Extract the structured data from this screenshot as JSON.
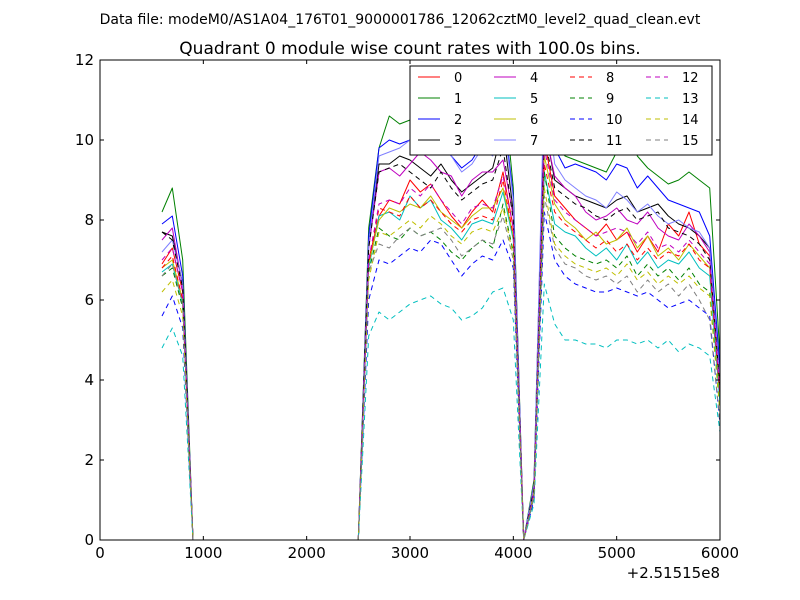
{
  "chart_data": {
    "type": "line",
    "suptitle": "Data file: modeM0/AS1A04_176T01_9000001786_12062cztM0_level2_quad_clean.evt",
    "title": "Quadrant 0 module wise count rates with 100.0s bins.",
    "xlabel": "",
    "ylabel": "",
    "offset_text": "+2.51515e8",
    "xlim": [
      0,
      6000
    ],
    "ylim": [
      0,
      12
    ],
    "xticks": [
      0,
      1000,
      2000,
      3000,
      4000,
      5000,
      6000
    ],
    "yticks": [
      0,
      2,
      4,
      6,
      8,
      10,
      12
    ],
    "xtick_labels": [
      "0",
      "1000",
      "2000",
      "3000",
      "4000",
      "5000",
      "6000"
    ],
    "ytick_labels": [
      "0",
      "2",
      "4",
      "6",
      "8",
      "10",
      "12"
    ],
    "grid": false,
    "legend_position": "top-right",
    "x": [
      600,
      700,
      800,
      900,
      1000,
      1100,
      1200,
      1300,
      1400,
      1500,
      1600,
      1700,
      1800,
      1900,
      2000,
      2100,
      2200,
      2300,
      2400,
      2500,
      2600,
      2700,
      2800,
      2900,
      3000,
      3100,
      3200,
      3300,
      3400,
      3500,
      3600,
      3700,
      3800,
      3900,
      4000,
      4100,
      4200,
      4300,
      4400,
      4500,
      4600,
      4700,
      4800,
      4900,
      5000,
      5100,
      5200,
      5300,
      5400,
      5500,
      5600,
      5700,
      5800,
      5900,
      6000
    ],
    "series": [
      {
        "name": "0",
        "color": "#ff0000",
        "dash": "solid",
        "values": [
          6.9,
          7.3,
          6.2,
          0,
          0,
          0,
          0,
          0,
          0,
          0,
          0,
          0,
          0,
          0,
          0,
          0,
          0,
          0,
          0,
          0,
          7.0,
          8.1,
          8.5,
          8.4,
          9.0,
          8.7,
          8.9,
          8.5,
          8.1,
          7.8,
          8.2,
          8.5,
          8.2,
          9.2,
          7.8,
          0,
          1.2,
          10.0,
          8.6,
          8.3,
          8.0,
          7.8,
          7.6,
          7.9,
          7.5,
          7.7,
          7.2,
          7.6,
          7.2,
          7.9,
          7.6,
          8.2,
          7.4,
          7.1,
          4.2
        ]
      },
      {
        "name": "1",
        "color": "#008000",
        "dash": "solid",
        "values": [
          8.2,
          8.8,
          7.0,
          0,
          0,
          0,
          0,
          0,
          0,
          0,
          0,
          0,
          0,
          0,
          0,
          0,
          0,
          0,
          0,
          0,
          7.8,
          9.8,
          10.6,
          10.4,
          10.5,
          10.9,
          10.8,
          10.4,
          10.3,
          9.8,
          10.1,
          10.0,
          10.2,
          11.5,
          8.8,
          0,
          1.5,
          11.0,
          10.0,
          9.6,
          9.5,
          9.4,
          9.3,
          9.2,
          9.7,
          10.4,
          9.6,
          9.3,
          9.1,
          8.9,
          9.0,
          9.2,
          9.0,
          8.8,
          4.6
        ]
      },
      {
        "name": "2",
        "color": "#0000ff",
        "dash": "solid",
        "values": [
          7.9,
          8.1,
          6.6,
          0,
          0,
          0,
          0,
          0,
          0,
          0,
          0,
          0,
          0,
          0,
          0,
          0,
          0,
          0,
          0,
          0,
          7.6,
          9.8,
          10.0,
          9.9,
          10.0,
          10.0,
          10.1,
          9.9,
          9.6,
          9.3,
          9.5,
          9.9,
          9.8,
          10.8,
          8.6,
          0,
          1.4,
          10.6,
          9.8,
          9.3,
          9.4,
          9.3,
          9.2,
          9.0,
          9.4,
          9.3,
          8.8,
          9.1,
          8.8,
          8.5,
          8.4,
          8.3,
          8.2,
          7.6,
          4.3
        ]
      },
      {
        "name": "3",
        "color": "#000000",
        "dash": "solid",
        "values": [
          7.7,
          7.6,
          6.4,
          0,
          0,
          0,
          0,
          0,
          0,
          0,
          0,
          0,
          0,
          0,
          0,
          0,
          0,
          0,
          0,
          0,
          7.4,
          9.4,
          9.4,
          9.6,
          9.5,
          9.3,
          9.1,
          9.4,
          9.0,
          8.7,
          8.9,
          9.1,
          9.3,
          10.3,
          8.2,
          0,
          1.3,
          10.4,
          9.0,
          8.8,
          8.6,
          8.5,
          8.4,
          8.3,
          8.5,
          8.6,
          8.2,
          8.3,
          8.4,
          8.1,
          7.9,
          7.8,
          7.6,
          7.3,
          3.9
        ]
      },
      {
        "name": "4",
        "color": "#bf00bf",
        "dash": "solid",
        "values": [
          7.5,
          7.8,
          6.3,
          0,
          0,
          0,
          0,
          0,
          0,
          0,
          0,
          0,
          0,
          0,
          0,
          0,
          0,
          0,
          0,
          0,
          7.3,
          9.2,
          9.3,
          9.1,
          9.4,
          9.7,
          9.5,
          9.2,
          9.1,
          8.6,
          9.0,
          9.2,
          9.2,
          9.5,
          8.1,
          0,
          1.3,
          10.3,
          9.1,
          8.8,
          8.6,
          8.2,
          8.0,
          8.1,
          8.3,
          8.0,
          7.9,
          8.2,
          7.8,
          7.6,
          7.5,
          7.9,
          7.6,
          7.2,
          3.8
        ]
      },
      {
        "name": "5",
        "color": "#00bfbf",
        "dash": "solid",
        "values": [
          6.7,
          6.9,
          5.9,
          0,
          0,
          0,
          0,
          0,
          0,
          0,
          0,
          0,
          0,
          0,
          0,
          0,
          0,
          0,
          0,
          0,
          6.8,
          8.1,
          8.2,
          8.0,
          8.6,
          8.3,
          8.5,
          8.0,
          7.8,
          7.5,
          7.9,
          8.0,
          7.9,
          8.7,
          7.5,
          0,
          1.1,
          9.2,
          7.9,
          7.7,
          7.6,
          7.3,
          7.1,
          7.3,
          7.0,
          7.4,
          6.9,
          7.2,
          6.8,
          7.0,
          6.9,
          7.2,
          6.8,
          6.6,
          3.4
        ]
      },
      {
        "name": "6",
        "color": "#bfbf00",
        "dash": "solid",
        "values": [
          6.8,
          7.0,
          6.0,
          0,
          0,
          0,
          0,
          0,
          0,
          0,
          0,
          0,
          0,
          0,
          0,
          0,
          0,
          0,
          0,
          0,
          6.9,
          8.0,
          8.3,
          8.2,
          8.4,
          8.3,
          8.6,
          8.2,
          8.0,
          7.8,
          8.1,
          8.3,
          8.3,
          8.8,
          7.6,
          0,
          1.2,
          9.6,
          8.4,
          8.0,
          7.8,
          7.5,
          7.7,
          7.4,
          7.5,
          7.8,
          7.3,
          7.6,
          7.1,
          7.3,
          7.0,
          7.4,
          7.1,
          6.8,
          3.6
        ]
      },
      {
        "name": "7",
        "color": "#7f7fff",
        "dash": "solid",
        "values": [
          7.2,
          7.5,
          6.4,
          0,
          0,
          0,
          0,
          0,
          0,
          0,
          0,
          0,
          0,
          0,
          0,
          0,
          0,
          0,
          0,
          0,
          7.4,
          9.6,
          9.7,
          9.8,
          10.0,
          10.4,
          10.2,
          9.8,
          9.6,
          9.2,
          9.4,
          9.8,
          9.6,
          10.6,
          8.5,
          0,
          1.4,
          11.5,
          9.4,
          9.0,
          8.8,
          8.6,
          8.5,
          8.3,
          8.7,
          8.5,
          8.2,
          8.4,
          8.1,
          7.9,
          8.0,
          7.8,
          7.7,
          7.3,
          4.0
        ]
      },
      {
        "name": "8",
        "color": "#ff0000",
        "dash": "dashed",
        "values": [
          6.8,
          7.1,
          6.0,
          0,
          0,
          0,
          0,
          0,
          0,
          0,
          0,
          0,
          0,
          0,
          0,
          0,
          0,
          0,
          0,
          0,
          6.9,
          8.3,
          8.2,
          8.1,
          8.6,
          8.3,
          8.5,
          8.2,
          7.9,
          7.7,
          8.0,
          8.1,
          8.0,
          9.0,
          7.6,
          0,
          1.1,
          9.4,
          8.2,
          7.9,
          7.7,
          7.5,
          7.3,
          7.5,
          7.2,
          7.4,
          7.0,
          7.3,
          7.0,
          7.2,
          7.1,
          7.4,
          7.0,
          6.8,
          3.6
        ]
      },
      {
        "name": "9",
        "color": "#008000",
        "dash": "dashed",
        "values": [
          6.6,
          6.8,
          5.8,
          0,
          0,
          0,
          0,
          0,
          0,
          0,
          0,
          0,
          0,
          0,
          0,
          0,
          0,
          0,
          0,
          0,
          6.7,
          7.8,
          7.6,
          7.5,
          7.8,
          7.6,
          7.7,
          7.5,
          7.2,
          7.0,
          7.3,
          7.5,
          7.3,
          8.4,
          7.2,
          0,
          1.1,
          9.2,
          7.6,
          7.3,
          7.1,
          7.0,
          6.9,
          7.0,
          6.8,
          7.1,
          6.6,
          6.9,
          6.6,
          6.8,
          6.5,
          6.8,
          6.4,
          6.2,
          3.2
        ]
      },
      {
        "name": "10",
        "color": "#0000ff",
        "dash": "dashed",
        "values": [
          5.6,
          6.1,
          5.3,
          0,
          0,
          0,
          0,
          0,
          0,
          0,
          0,
          0,
          0,
          0,
          0,
          0,
          0,
          0,
          0,
          0,
          6.0,
          7.0,
          6.9,
          7.1,
          7.3,
          7.2,
          7.5,
          7.4,
          7.0,
          6.6,
          6.9,
          7.1,
          7.0,
          7.5,
          6.8,
          0,
          1.0,
          8.2,
          7.0,
          6.6,
          6.4,
          6.3,
          6.2,
          6.2,
          6.3,
          6.2,
          6.1,
          6.2,
          6.0,
          5.8,
          5.9,
          6.0,
          5.8,
          5.6,
          2.9
        ]
      },
      {
        "name": "11",
        "color": "#000000",
        "dash": "dashed",
        "values": [
          7.7,
          7.5,
          6.3,
          0,
          0,
          0,
          0,
          0,
          0,
          0,
          0,
          0,
          0,
          0,
          0,
          0,
          0,
          0,
          0,
          0,
          7.3,
          9.2,
          9.3,
          9.4,
          9.2,
          9.0,
          8.8,
          9.2,
          8.8,
          8.5,
          8.7,
          8.9,
          9.0,
          9.8,
          8.0,
          0,
          1.3,
          10.1,
          8.8,
          8.6,
          8.4,
          8.3,
          8.1,
          8.0,
          8.2,
          8.3,
          8.0,
          8.1,
          8.2,
          7.8,
          7.7,
          7.6,
          7.4,
          7.0,
          3.8
        ]
      },
      {
        "name": "12",
        "color": "#bf00bf",
        "dash": "dashed",
        "values": [
          7.0,
          7.3,
          6.2,
          0,
          0,
          0,
          0,
          0,
          0,
          0,
          0,
          0,
          0,
          0,
          0,
          0,
          0,
          0,
          0,
          0,
          7.0,
          8.4,
          8.5,
          8.4,
          8.8,
          8.6,
          8.9,
          8.5,
          8.2,
          7.9,
          8.3,
          8.4,
          8.3,
          9.1,
          7.8,
          0,
          1.2,
          9.8,
          8.5,
          8.2,
          8.0,
          7.8,
          7.6,
          7.7,
          7.8,
          7.7,
          7.4,
          7.7,
          7.3,
          7.4,
          7.2,
          7.5,
          7.2,
          6.9,
          3.7
        ]
      },
      {
        "name": "13",
        "color": "#00bfbf",
        "dash": "dashed",
        "values": [
          4.8,
          5.3,
          4.6,
          0,
          0,
          0,
          0,
          0,
          0,
          0,
          0,
          0,
          0,
          0,
          0,
          0,
          0,
          0,
          0,
          0,
          5.1,
          5.7,
          5.5,
          5.7,
          5.9,
          6.0,
          6.1,
          5.9,
          5.8,
          5.5,
          5.6,
          5.8,
          6.2,
          6.3,
          5.5,
          0,
          0.9,
          6.4,
          5.4,
          5.0,
          5.0,
          4.9,
          4.9,
          4.8,
          5.0,
          5.0,
          4.9,
          5.0,
          4.8,
          5.0,
          4.7,
          4.9,
          4.8,
          4.6,
          2.7
        ]
      },
      {
        "name": "14",
        "color": "#bfbf00",
        "dash": "dashed",
        "values": [
          6.2,
          6.5,
          5.6,
          0,
          0,
          0,
          0,
          0,
          0,
          0,
          0,
          0,
          0,
          0,
          0,
          0,
          0,
          0,
          0,
          0,
          6.5,
          7.7,
          7.6,
          7.8,
          8.0,
          7.8,
          8.1,
          7.9,
          7.6,
          7.4,
          7.7,
          7.8,
          7.7,
          8.3,
          7.1,
          0,
          1.1,
          8.8,
          7.4,
          7.1,
          6.9,
          6.8,
          6.7,
          6.8,
          6.6,
          6.9,
          6.5,
          6.7,
          6.4,
          6.6,
          6.4,
          6.6,
          6.3,
          6.1,
          3.2
        ]
      },
      {
        "name": "15",
        "color": "#7f7f7f",
        "dash": "dashed",
        "values": [
          6.6,
          6.9,
          5.9,
          0,
          0,
          0,
          0,
          0,
          0,
          0,
          0,
          0,
          0,
          0,
          0,
          0,
          0,
          0,
          0,
          0,
          6.7,
          7.4,
          7.3,
          7.6,
          7.8,
          7.6,
          7.7,
          7.8,
          7.5,
          7.1,
          7.3,
          7.5,
          7.4,
          8.1,
          7.0,
          0,
          1.1,
          8.6,
          7.3,
          6.9,
          6.8,
          6.6,
          6.5,
          6.6,
          6.4,
          6.6,
          6.2,
          6.5,
          6.2,
          6.4,
          6.1,
          6.4,
          6.0,
          5.5,
          2.9
        ]
      }
    ]
  }
}
